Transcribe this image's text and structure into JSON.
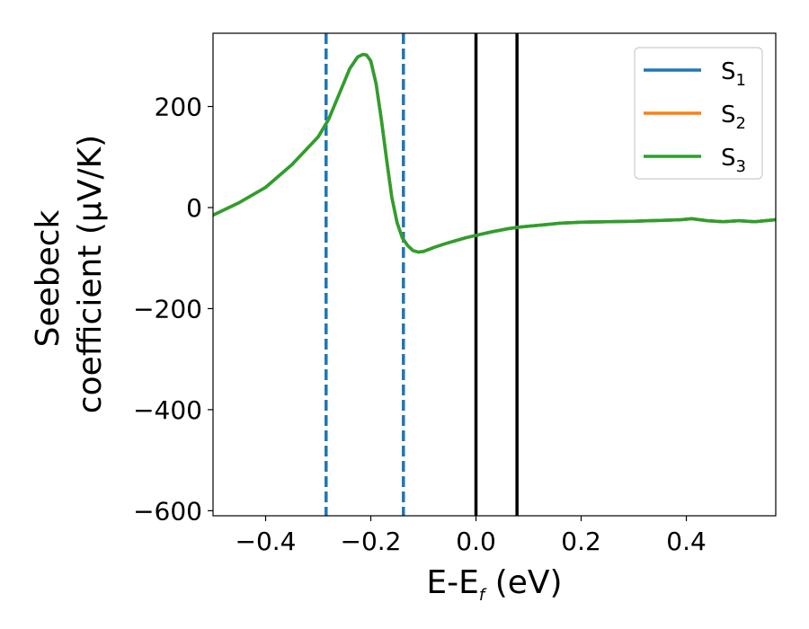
{
  "chart_data": {
    "type": "line",
    "xlabel": {
      "main": "E-E",
      "sub": "f",
      "suffix": " (eV)"
    },
    "ylabel": {
      "line1": "Seebeck",
      "line2": "coefficient  (μV/K)"
    },
    "xlim": [
      -0.5,
      0.57
    ],
    "ylim": [
      -610,
      345
    ],
    "xticks": [
      -0.4,
      -0.2,
      0.0,
      0.2,
      0.4
    ],
    "xtick_labels": [
      "−0.4",
      "−0.2",
      "0.0",
      "0.2",
      "0.4"
    ],
    "yticks": [
      200,
      0,
      -200,
      -400,
      -600
    ],
    "ytick_labels": [
      "200",
      "0",
      "−200",
      "−400",
      "−600"
    ],
    "grid": false,
    "legend_position": "top-right",
    "vlines": [
      {
        "x": -0.285,
        "style": "dashed",
        "color": "#1f77b4"
      },
      {
        "x": -0.138,
        "style": "dashed",
        "color": "#1f77b4"
      },
      {
        "x": 0.0,
        "style": "solid",
        "color": "#000000"
      },
      {
        "x": 0.078,
        "style": "solid",
        "color": "#000000"
      }
    ],
    "x": [
      -0.5,
      -0.45,
      -0.4,
      -0.35,
      -0.3,
      -0.28,
      -0.26,
      -0.24,
      -0.225,
      -0.215,
      -0.208,
      -0.2,
      -0.19,
      -0.18,
      -0.17,
      -0.16,
      -0.15,
      -0.14,
      -0.13,
      -0.12,
      -0.11,
      -0.1,
      -0.09,
      -0.08,
      -0.06,
      -0.04,
      -0.02,
      0.0,
      0.03,
      0.06,
      0.08,
      0.1,
      0.13,
      0.16,
      0.2,
      0.25,
      0.3,
      0.33,
      0.36,
      0.39,
      0.41,
      0.44,
      0.47,
      0.5,
      0.53,
      0.57
    ],
    "series": [
      {
        "name": "S",
        "sub": "1",
        "color": "#1f77b4",
        "y": [
          -15,
          10,
          40,
          85,
          140,
          175,
          225,
          275,
          298,
          303,
          302,
          290,
          245,
          175,
          95,
          20,
          -30,
          -60,
          -75,
          -85,
          -88,
          -87,
          -83,
          -79,
          -72,
          -66,
          -60,
          -55,
          -48,
          -42,
          -39,
          -37,
          -34,
          -31,
          -29,
          -28,
          -27,
          -26,
          -25,
          -24,
          -22,
          -26,
          -28,
          -26,
          -28,
          -24
        ]
      },
      {
        "name": "S",
        "sub": "2",
        "color": "#ff7f0e",
        "y": [
          -15,
          10,
          40,
          85,
          140,
          175,
          225,
          275,
          298,
          303,
          302,
          290,
          245,
          175,
          95,
          20,
          -30,
          -60,
          -75,
          -85,
          -88,
          -87,
          -83,
          -79,
          -72,
          -66,
          -60,
          -55,
          -48,
          -42,
          -39,
          -37,
          -34,
          -31,
          -29,
          -28,
          -27,
          -26,
          -25,
          -24,
          -22,
          -26,
          -28,
          -26,
          -28,
          -24
        ]
      },
      {
        "name": "S",
        "sub": "3",
        "color": "#2ca02c",
        "y": [
          -15,
          10,
          40,
          85,
          140,
          175,
          225,
          275,
          298,
          303,
          302,
          290,
          245,
          175,
          95,
          20,
          -30,
          -60,
          -75,
          -85,
          -88,
          -87,
          -83,
          -79,
          -72,
          -66,
          -60,
          -55,
          -48,
          -42,
          -39,
          -37,
          -34,
          -31,
          -29,
          -28,
          -27,
          -26,
          -25,
          -24,
          -22,
          -26,
          -28,
          -26,
          -28,
          -24
        ]
      }
    ]
  }
}
